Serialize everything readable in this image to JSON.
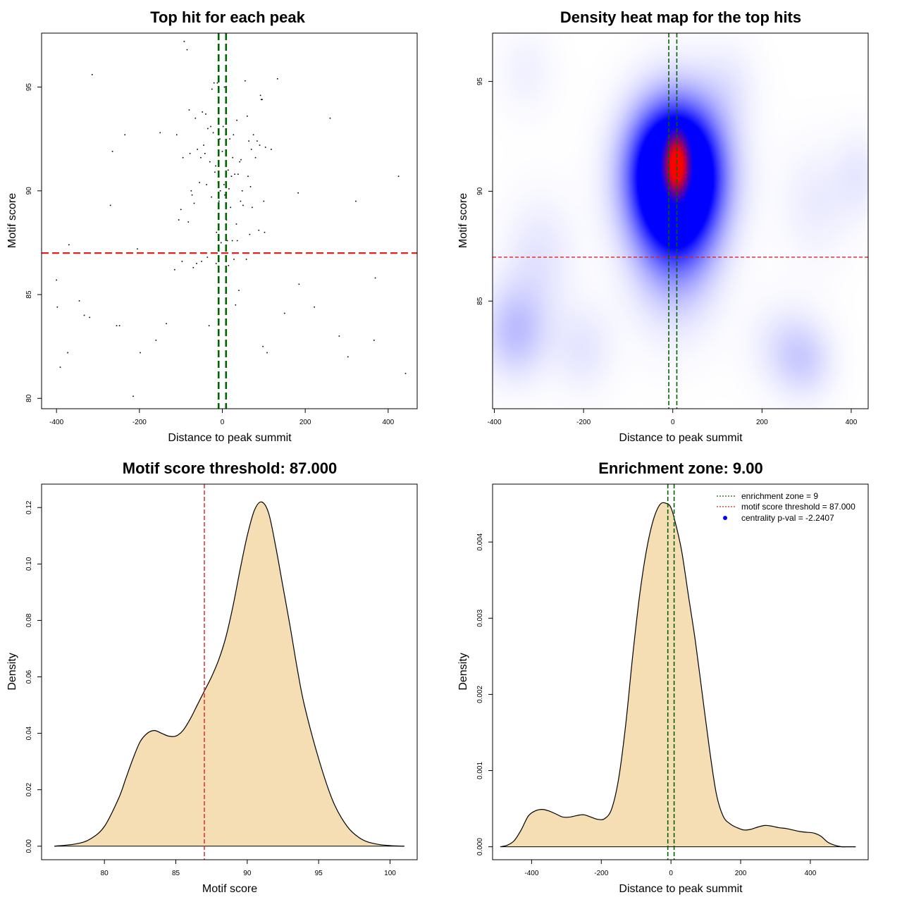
{
  "colors": {
    "threshold_line": "#dd2222",
    "zone_line": "#006400",
    "density_fill": "#f5deb3",
    "heat_low": "#ffffff",
    "heat_mid": "#0000ff",
    "heat_high": "#ff0000",
    "legend_pval_dot": "#0000ff"
  },
  "chart_data": [
    {
      "type": "scatter",
      "title": "Top hit for each peak",
      "xlabel": "Distance to peak summit",
      "ylabel": "Motif score",
      "xlim": [
        -436,
        470
      ],
      "ylim": [
        79.5,
        97.6
      ],
      "xticks": [
        -400,
        -200,
        0,
        200,
        400
      ],
      "yticks": [
        80,
        85,
        90,
        95
      ],
      "threshold_y": 87,
      "zone_x": [
        -9,
        9
      ],
      "points": [
        [
          -400,
          85.7
        ],
        [
          -398,
          84.4
        ],
        [
          -391,
          81.5
        ],
        [
          -373,
          82.2
        ],
        [
          -370,
          87.4
        ],
        [
          -345,
          84.7
        ],
        [
          -333,
          84.0
        ],
        [
          -320,
          83.9
        ],
        [
          -314,
          95.6
        ],
        [
          -270,
          89.3
        ],
        [
          -265,
          91.9
        ],
        [
          -255,
          83.5
        ],
        [
          -248,
          83.5
        ],
        [
          -235,
          92.7
        ],
        [
          -215,
          80.1
        ],
        [
          -205,
          87.2
        ],
        [
          -198,
          82.2
        ],
        [
          -160,
          82.8
        ],
        [
          -150,
          92.8
        ],
        [
          -135,
          83.6
        ],
        [
          -115,
          86.2
        ],
        [
          -110,
          92.7
        ],
        [
          -105,
          88.6
        ],
        [
          -100,
          89.1
        ],
        [
          -97,
          86.6
        ],
        [
          -95,
          91.6
        ],
        [
          -92,
          97.2
        ],
        [
          -85,
          96.8
        ],
        [
          -82,
          88.5
        ],
        [
          -80,
          93.9
        ],
        [
          -78,
          91.8
        ],
        [
          -75,
          90.0
        ],
        [
          -73,
          89.8
        ],
        [
          -70,
          86.3
        ],
        [
          -68,
          89.4
        ],
        [
          -65,
          93.5
        ],
        [
          -62,
          86.5
        ],
        [
          -60,
          92.0
        ],
        [
          -55,
          90.4
        ],
        [
          -52,
          91.6
        ],
        [
          -50,
          86.6
        ],
        [
          -48,
          93.8
        ],
        [
          -45,
          92.2
        ],
        [
          -42,
          91.8
        ],
        [
          -40,
          93.7
        ],
        [
          -38,
          90.3
        ],
        [
          -36,
          86.8
        ],
        [
          -35,
          93.0
        ],
        [
          -32,
          83.5
        ],
        [
          -30,
          91.4
        ],
        [
          -28,
          93.1
        ],
        [
          -26,
          89.7
        ],
        [
          -25,
          94.9
        ],
        [
          -22,
          92.8
        ],
        [
          -20,
          95.2
        ],
        [
          -18,
          90.9
        ],
        [
          -16,
          91.2
        ],
        [
          -15,
          86.5
        ],
        [
          -14,
          88.0
        ],
        [
          -12,
          95.2
        ],
        [
          -10,
          90.4
        ],
        [
          -8,
          89.5
        ],
        [
          -6,
          92.5
        ],
        [
          -5,
          90.0
        ],
        [
          -3,
          87.5
        ],
        [
          0,
          91.9
        ],
        [
          2,
          93.1
        ],
        [
          4,
          90.3
        ],
        [
          5,
          95.0
        ],
        [
          6,
          89.8
        ],
        [
          8,
          92.7
        ],
        [
          10,
          88.6
        ],
        [
          12,
          87.6
        ],
        [
          14,
          91.0
        ],
        [
          15,
          86.4
        ],
        [
          16,
          90.1
        ],
        [
          18,
          92.5
        ],
        [
          20,
          89.2
        ],
        [
          22,
          90.7
        ],
        [
          24,
          87.6
        ],
        [
          25,
          91.6
        ],
        [
          27,
          92.7
        ],
        [
          28,
          86.7
        ],
        [
          30,
          90.8
        ],
        [
          32,
          84.5
        ],
        [
          34,
          88.4
        ],
        [
          35,
          93.4
        ],
        [
          36,
          87.6
        ],
        [
          38,
          90.8
        ],
        [
          40,
          85.2
        ],
        [
          42,
          91.4
        ],
        [
          44,
          89.5
        ],
        [
          45,
          91.5
        ],
        [
          48,
          90.0
        ],
        [
          50,
          89.3
        ],
        [
          55,
          95.3
        ],
        [
          58,
          86.7
        ],
        [
          60,
          93.6
        ],
        [
          62,
          90.7
        ],
        [
          64,
          92.4
        ],
        [
          66,
          87.9
        ],
        [
          68,
          90.2
        ],
        [
          70,
          92.0
        ],
        [
          72,
          89.2
        ],
        [
          75,
          92.7
        ],
        [
          80,
          91.6
        ],
        [
          84,
          92.4
        ],
        [
          88,
          88.1
        ],
        [
          90,
          92.2
        ],
        [
          92,
          94.6
        ],
        [
          94,
          94.4
        ],
        [
          96,
          94.4
        ],
        [
          98,
          82.5
        ],
        [
          100,
          89.5
        ],
        [
          102,
          88.0
        ],
        [
          104,
          92.1
        ],
        [
          108,
          82.2
        ],
        [
          118,
          92.0
        ],
        [
          133,
          95.4
        ],
        [
          150,
          84.1
        ],
        [
          183,
          89.9
        ],
        [
          185,
          85.5
        ],
        [
          222,
          84.4
        ],
        [
          260,
          93.5
        ],
        [
          282,
          83.0
        ],
        [
          303,
          82.0
        ],
        [
          322,
          89.5
        ],
        [
          366,
          82.8
        ],
        [
          369,
          85.8
        ],
        [
          425,
          90.7
        ],
        [
          442,
          81.2
        ]
      ]
    },
    {
      "type": "heatmap",
      "title": "Density heat map for the top hits",
      "xlabel": "Distance to peak summit",
      "ylabel": "Motif score",
      "xlim": [
        -404,
        438
      ],
      "ylim": [
        80.1,
        97.2
      ],
      "xticks": [
        -400,
        -200,
        0,
        200,
        400
      ],
      "yticks": [
        85,
        90,
        95
      ],
      "threshold_y": 87,
      "zone_x": [
        -9,
        9
      ],
      "blobs": [
        {
          "x": 8,
          "y": 91.2,
          "sx": 22,
          "sy": 1.1,
          "w": 1.0,
          "color": "red"
        },
        {
          "x": 5,
          "y": 91.0,
          "sx": 75,
          "sy": 2.2,
          "w": 1.0,
          "color": "blue"
        },
        {
          "x": 5,
          "y": 89.0,
          "sx": 70,
          "sy": 3.0,
          "w": 0.55,
          "color": "blue"
        },
        {
          "x": -355,
          "y": 83.6,
          "sx": 55,
          "sy": 1.6,
          "w": 0.25,
          "color": "blue"
        },
        {
          "x": -300,
          "y": 87.2,
          "sx": 60,
          "sy": 2.0,
          "w": 0.12,
          "color": "blue"
        },
        {
          "x": -200,
          "y": 82.8,
          "sx": 50,
          "sy": 1.5,
          "w": 0.12,
          "color": "blue"
        },
        {
          "x": 250,
          "y": 83.0,
          "sx": 60,
          "sy": 1.5,
          "w": 0.12,
          "color": "blue"
        },
        {
          "x": 300,
          "y": 82.2,
          "sx": 50,
          "sy": 1.3,
          "w": 0.14,
          "color": "blue"
        },
        {
          "x": 320,
          "y": 89.5,
          "sx": 60,
          "sy": 2.0,
          "w": 0.1,
          "color": "blue"
        },
        {
          "x": 420,
          "y": 90.8,
          "sx": 40,
          "sy": 1.5,
          "w": 0.1,
          "color": "blue"
        },
        {
          "x": -330,
          "y": 95.5,
          "sx": 50,
          "sy": 1.5,
          "w": 0.08,
          "color": "blue"
        },
        {
          "x": 130,
          "y": 95.0,
          "sx": 50,
          "sy": 1.5,
          "w": 0.08,
          "color": "blue"
        }
      ]
    },
    {
      "type": "area",
      "title": "Motif score threshold: 87.000",
      "xlabel": "Motif score",
      "ylabel": "Density",
      "xlim": [
        75.6,
        101.9
      ],
      "ylim": [
        -0.0048,
        0.1283
      ],
      "xticks": [
        80,
        85,
        90,
        95,
        100
      ],
      "yticks": [
        0.0,
        0.02,
        0.04,
        0.06,
        0.08,
        0.1,
        0.12
      ],
      "ytick_labels": [
        "0.00",
        "0.02",
        "0.04",
        "0.06",
        "0.08",
        "0.10",
        "0.12"
      ],
      "threshold_x": 87,
      "x": [
        76.5,
        78,
        79,
        80,
        81,
        81.5,
        82,
        82.5,
        83,
        83.5,
        84,
        84.5,
        85,
        85.5,
        86,
        86.5,
        87,
        87.5,
        88,
        88.5,
        89,
        89.5,
        90,
        90.5,
        91,
        91.5,
        92,
        92.5,
        93,
        93.5,
        94,
        95,
        96,
        97,
        98,
        99,
        100,
        101
      ],
      "y": [
        0.0,
        0.0008,
        0.0025,
        0.007,
        0.017,
        0.024,
        0.031,
        0.037,
        0.04,
        0.041,
        0.04,
        0.039,
        0.039,
        0.041,
        0.045,
        0.05,
        0.055,
        0.06,
        0.066,
        0.074,
        0.085,
        0.098,
        0.11,
        0.119,
        0.122,
        0.118,
        0.106,
        0.092,
        0.078,
        0.063,
        0.05,
        0.031,
        0.016,
        0.007,
        0.0025,
        0.0008,
        0.0002,
        0.0
      ]
    },
    {
      "type": "area",
      "title": "Enrichment zone: 9.00",
      "xlabel": "Distance to peak summit",
      "ylabel": "Density",
      "xlim": [
        -512,
        566
      ],
      "ylim": [
        -0.00017,
        0.00476
      ],
      "xticks": [
        -400,
        -200,
        0,
        200,
        400
      ],
      "yticks": [
        0.0,
        0.001,
        0.002,
        0.003,
        0.004
      ],
      "ytick_labels": [
        "0.000",
        "0.001",
        "0.002",
        "0.003",
        "0.004"
      ],
      "zone_x": [
        -9,
        9
      ],
      "x": [
        -490,
        -470,
        -450,
        -430,
        -410,
        -390,
        -370,
        -350,
        -330,
        -310,
        -290,
        -270,
        -250,
        -230,
        -210,
        -190,
        -170,
        -150,
        -130,
        -110,
        -90,
        -70,
        -50,
        -30,
        -10,
        0,
        10,
        30,
        50,
        70,
        90,
        110,
        130,
        150,
        170,
        190,
        210,
        230,
        250,
        270,
        290,
        310,
        330,
        350,
        370,
        390,
        410,
        430,
        450,
        470,
        490,
        510,
        530
      ],
      "y": [
        0.0,
        2e-05,
        8e-05,
        0.00022,
        0.0004,
        0.00047,
        0.00049,
        0.00047,
        0.00043,
        0.00039,
        0.00039,
        0.00041,
        0.00042,
        0.00039,
        0.00036,
        0.00037,
        0.0005,
        0.0009,
        0.0016,
        0.0025,
        0.0033,
        0.0039,
        0.0043,
        0.0045,
        0.0045,
        0.00445,
        0.0043,
        0.0039,
        0.0033,
        0.0027,
        0.002,
        0.0013,
        0.0007,
        0.0004,
        0.0003,
        0.00025,
        0.00022,
        0.00023,
        0.00026,
        0.00028,
        0.00027,
        0.00025,
        0.00024,
        0.00022,
        0.0002,
        0.00019,
        0.00018,
        0.00014,
        6e-05,
        2e-05,
        0.0,
        0.0,
        0.0
      ],
      "legend": [
        {
          "label": "enrichment zone = 9",
          "kind": "line",
          "color": "#006400"
        },
        {
          "label": "motif score threshold = 87.000",
          "kind": "line",
          "color": "#dd2222"
        },
        {
          "label": "centrality p-val = -2.2407",
          "kind": "dot",
          "color": "#0000ff"
        }
      ]
    }
  ]
}
